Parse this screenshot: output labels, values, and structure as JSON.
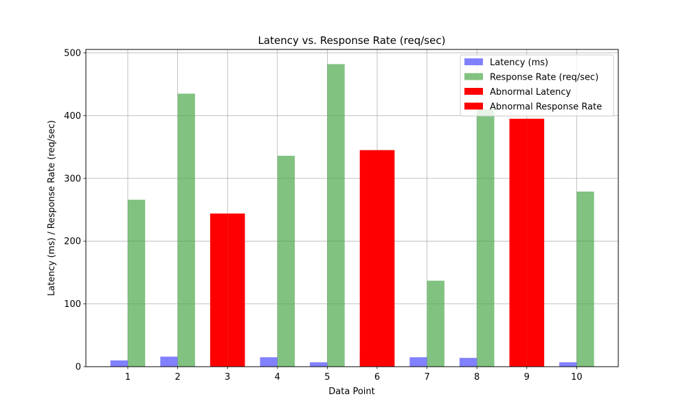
{
  "chart_data": {
    "type": "bar",
    "title": "Latency vs. Response Rate (req/sec)",
    "xlabel": "Data Point",
    "ylabel": "Latency (ms) / Response Rate (req/sec)",
    "ylim": [
      0,
      505
    ],
    "yticks": [
      0,
      100,
      200,
      300,
      400,
      500
    ],
    "categories": [
      "1",
      "2",
      "3",
      "4",
      "5",
      "6",
      "7",
      "8",
      "9",
      "10"
    ],
    "grid": true,
    "legend_position": "top-right",
    "series": [
      {
        "name": "Latency (ms)",
        "color": "#4b4bff",
        "values": [
          10,
          16,
          19,
          15,
          7,
          21,
          15,
          14,
          19,
          7
        ]
      },
      {
        "name": "Response Rate (req/sec)",
        "color": "#4ca84c",
        "values": [
          266,
          435,
          244,
          336,
          482,
          345,
          137,
          410,
          395,
          279
        ]
      },
      {
        "name": "Abnormal Latency",
        "color": "#ff0000",
        "values": [
          null,
          null,
          244,
          null,
          null,
          345,
          null,
          null,
          395,
          null
        ]
      },
      {
        "name": "Abnormal Response Rate",
        "color": "#ff0000",
        "values": [
          null,
          null,
          244,
          null,
          null,
          345,
          null,
          null,
          395,
          null
        ]
      }
    ]
  }
}
